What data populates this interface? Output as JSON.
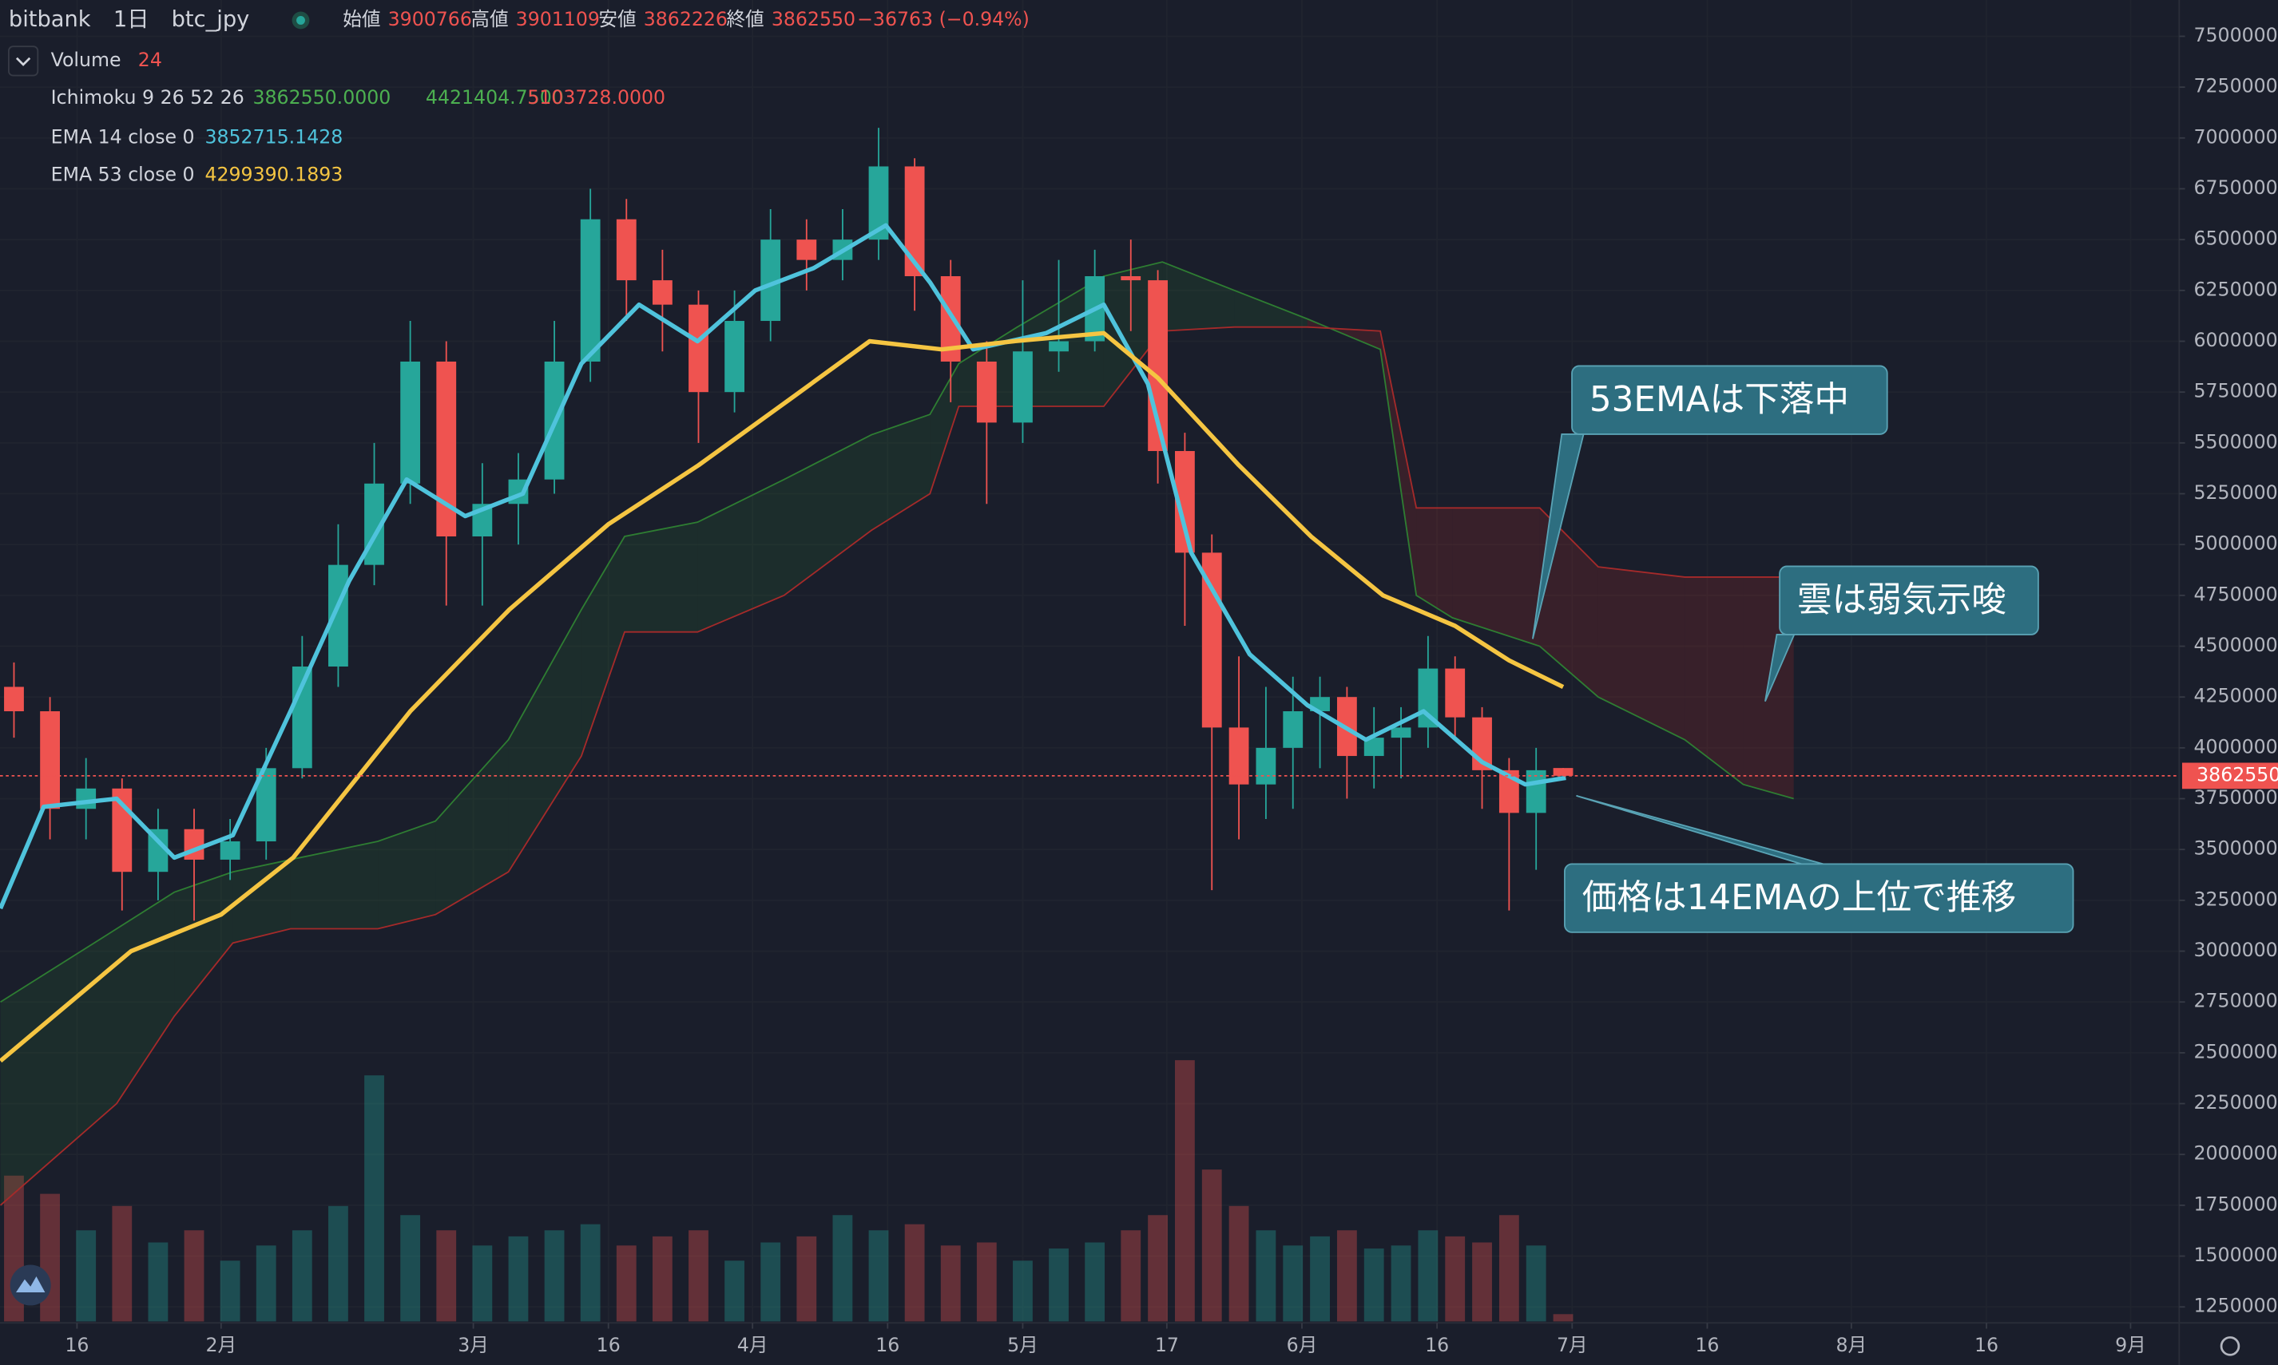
{
  "chart_data": {
    "type": "candlestick",
    "header": {
      "exchange": "bitbank",
      "interval": "1日",
      "symbol": "btc_jpy",
      "open_label": "始値",
      "high_label": "高値",
      "low_label": "安値",
      "close_label": "終値",
      "change": "−36763 (−0.94%)"
    },
    "up_color": "#26a69a",
    "down_color": "#ef5350",
    "x": [
      8,
      12,
      16,
      20,
      24,
      28,
      32,
      36,
      40,
      44,
      48,
      52,
      56,
      60,
      64,
      68,
      72,
      76,
      80,
      84,
      88,
      92,
      96,
      100,
      104,
      108,
      112,
      116,
      120,
      124,
      128,
      132,
      135,
      138,
      141,
      144,
      147,
      150,
      153,
      156,
      159,
      162,
      165,
      168,
      171,
      174,
      177,
      180
    ],
    "open": [
      4300000,
      4180000,
      3700000,
      3800000,
      3390000,
      3600000,
      3450000,
      3540000,
      3900000,
      4400000,
      4900000,
      5300000,
      5900000,
      5040000,
      5200000,
      5320000,
      5900000,
      6600000,
      6300000,
      6180000,
      5750000,
      6100000,
      6500000,
      6400000,
      6500000,
      6860000,
      6320000,
      5900000,
      5600000,
      5950000,
      6000000,
      6320000,
      6300000,
      5460000,
      4960000,
      4100000,
      3820000,
      4000000,
      4180000,
      4250000,
      3960000,
      4050000,
      4100000,
      4390000,
      4150000,
      3890000,
      3680000,
      3900766
    ],
    "high": [
      4420000,
      4250000,
      3950000,
      3850000,
      3700000,
      3700000,
      3650000,
      4000000,
      4550000,
      5100000,
      5500000,
      6100000,
      6000000,
      5400000,
      5450000,
      6100000,
      6750000,
      6700000,
      6450000,
      6250000,
      6250000,
      6650000,
      6600000,
      6650000,
      7050000,
      6900000,
      6400000,
      6000000,
      6300000,
      6400000,
      6450000,
      6500000,
      6350000,
      5550000,
      5050000,
      4450000,
      4300000,
      4350000,
      4350000,
      4300000,
      4200000,
      4200000,
      4550000,
      4450000,
      4200000,
      3950000,
      4000000,
      3901109
    ],
    "low": [
      4050000,
      3550000,
      3550000,
      3200000,
      3250000,
      3150000,
      3350000,
      3450000,
      3850000,
      4300000,
      4800000,
      5200000,
      4700000,
      4700000,
      5000000,
      5250000,
      5800000,
      6100000,
      5950000,
      5500000,
      5650000,
      6000000,
      6250000,
      6300000,
      6400000,
      6150000,
      5700000,
      5200000,
      5500000,
      5850000,
      5950000,
      6050000,
      5300000,
      4600000,
      3300000,
      3550000,
      3650000,
      3700000,
      3900000,
      3750000,
      3800000,
      3850000,
      4000000,
      4050000,
      3700000,
      3200000,
      3400000,
      3862226
    ],
    "close": [
      4180000,
      3700000,
      3800000,
      3390000,
      3600000,
      3450000,
      3540000,
      3900000,
      4400000,
      4900000,
      5300000,
      5900000,
      5040000,
      5200000,
      5320000,
      5900000,
      6600000,
      6300000,
      6180000,
      5750000,
      6100000,
      6500000,
      6400000,
      6500000,
      6860000,
      6320000,
      5900000,
      5600000,
      5950000,
      6000000,
      6320000,
      6300000,
      5460000,
      4960000,
      4100000,
      3820000,
      4000000,
      4180000,
      4250000,
      3960000,
      4050000,
      4100000,
      4390000,
      4150000,
      3890000,
      3680000,
      3890000,
      3862550
    ],
    "volume_name": "Volume",
    "volume": [
      480,
      420,
      300,
      380,
      260,
      300,
      200,
      250,
      300,
      380,
      810,
      350,
      300,
      250,
      280,
      300,
      320,
      250,
      280,
      300,
      200,
      260,
      280,
      350,
      300,
      320,
      250,
      260,
      200,
      240,
      260,
      300,
      350,
      860,
      500,
      380,
      300,
      250,
      280,
      300,
      240,
      250,
      300,
      280,
      260,
      350,
      250,
      24
    ],
    "volume_ylim": [
      0,
      4350
    ],
    "ylim": [
      1178571,
      7678571
    ],
    "yticks": [
      1250000,
      1500000,
      1750000,
      2000000,
      2250000,
      2500000,
      2750000,
      3000000,
      3250000,
      3500000,
      3750000,
      4000000,
      4250000,
      4500000,
      4750000,
      5000000,
      5250000,
      5500000,
      5750000,
      6000000,
      6250000,
      6500000,
      6750000,
      7000000,
      7250000,
      7500000
    ],
    "xlim": [
      6.45,
      248.4
    ],
    "xticks": [
      {
        "value": 15,
        "label": "16"
      },
      {
        "value": 31,
        "label": "2月"
      },
      {
        "value": 59,
        "label": "3月"
      },
      {
        "value": 74,
        "label": "16"
      },
      {
        "value": 90,
        "label": "4月"
      },
      {
        "value": 105,
        "label": "16"
      },
      {
        "value": 120,
        "label": "5月"
      },
      {
        "value": 136,
        "label": "17"
      },
      {
        "value": 151,
        "label": "6月"
      },
      {
        "value": 166,
        "label": "16"
      },
      {
        "value": 181,
        "label": "7月"
      },
      {
        "value": 196,
        "label": "16"
      },
      {
        "value": 212,
        "label": "8月"
      },
      {
        "value": 227,
        "label": "16"
      },
      {
        "value": 243,
        "label": "9月"
      }
    ],
    "grid": true,
    "ichimoku": {
      "name": "Ichimoku 9 26 52 26",
      "value_labels": [
        "3862550.0000",
        "4421404.7500",
        "5103728.0000"
      ],
      "label_colors": [
        "#4caf50",
        "#4caf50",
        "#ef5350"
      ],
      "span_a_color": "#2e7d32",
      "span_b_color": "#a52a2a",
      "x": [
        6.5,
        19.4,
        25.8,
        32.3,
        38.7,
        48.4,
        54.8,
        62.9,
        71,
        75.8,
        83.9,
        93.5,
        103.2,
        109.7,
        112.9,
        119.4,
        129,
        135.5,
        143.5,
        151.6,
        159.7,
        163.7,
        167.7,
        177.4,
        183.9,
        193.5,
        200,
        205.6
      ],
      "span_a": [
        2750000,
        3110000,
        3290000,
        3390000,
        3450000,
        3540000,
        3640000,
        4040000,
        4680000,
        5040000,
        5110000,
        5320000,
        5540000,
        5640000,
        5890000,
        6070000,
        6320000,
        6390000,
        6250000,
        6110000,
        5960000,
        4750000,
        4640000,
        4500000,
        4250000,
        4040000,
        3820000,
        3750000
      ],
      "span_b": [
        1750000,
        2250000,
        2680000,
        3040000,
        3110000,
        3110000,
        3180000,
        3390000,
        3960000,
        4570000,
        4570000,
        4750000,
        5070000,
        5250000,
        5680000,
        5680000,
        5680000,
        6050000,
        6070000,
        6070000,
        6050000,
        5180000,
        5180000,
        5180000,
        4890000,
        4840000,
        4840000,
        4840000
      ]
    },
    "lines": [
      {
        "name": "EMA 14 close 0",
        "value_label": "3852715.1428",
        "color": "#4fc3dc",
        "x": [
          6.5,
          11.3,
          19.4,
          25.8,
          32.3,
          38.7,
          45.2,
          51.6,
          58.1,
          64.5,
          71,
          77.4,
          83.9,
          90.3,
          96.8,
          104.8,
          109.7,
          114.5,
          122.6,
          129,
          133.9,
          138.7,
          145.2,
          151.6,
          158.1,
          164.5,
          171,
          175.8,
          180.3
        ],
        "values": [
          3210000,
          3710000,
          3750000,
          3460000,
          3570000,
          4180000,
          4820000,
          5320000,
          5140000,
          5250000,
          5890000,
          6180000,
          6000000,
          6250000,
          6360000,
          6570000,
          6290000,
          5960000,
          6040000,
          6180000,
          5790000,
          4960000,
          4460000,
          4210000,
          4040000,
          4180000,
          3930000,
          3820000,
          3852715
        ]
      },
      {
        "name": "EMA 53 close 0",
        "value_label": "4299390.1893",
        "color": "#f5c542",
        "x": [
          6.5,
          21,
          31,
          39,
          52,
          63,
          74,
          84,
          94,
          103,
          111,
          119,
          129,
          135,
          144,
          152,
          160,
          168,
          174,
          180
        ],
        "values": [
          2460000,
          3000000,
          3180000,
          3460000,
          4180000,
          4680000,
          5100000,
          5390000,
          5710000,
          6000000,
          5960000,
          6000000,
          6040000,
          5820000,
          5390000,
          5040000,
          4750000,
          4600000,
          4430000,
          4299390
        ]
      }
    ],
    "annotations": [
      {
        "text": "53EMAは下落中"
      },
      {
        "text": "雲は弱気示唆"
      },
      {
        "text": "価格は14EMAの上位で推移"
      }
    ]
  }
}
